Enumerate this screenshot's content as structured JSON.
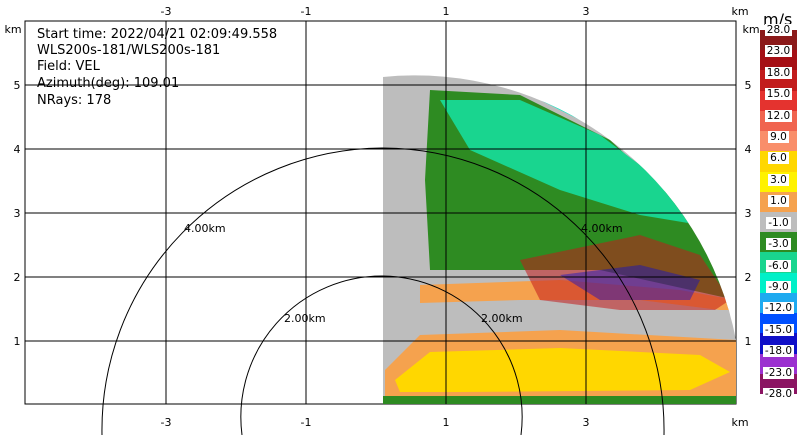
{
  "info": {
    "start_time": "Start time: 2022/04/21 02:09:49.558",
    "instrument": "WLS200s-181/WLS200s-181",
    "field": "Field: VEL",
    "azimuth": "Azimuth(deg): 109.01",
    "nrays": "NRays: 178"
  },
  "axes": {
    "unit": "km",
    "x_ticks": [
      "-3",
      "-1",
      "1",
      "3"
    ],
    "y_ticks": [
      "1",
      "2",
      "3",
      "4",
      "5"
    ]
  },
  "range_rings": [
    "2.00km",
    "4.00km",
    "2.00km",
    "4.00km"
  ],
  "colorbar": {
    "unit": "m/s",
    "labels": [
      "28.0",
      "23.0",
      "18.0",
      "15.0",
      "12.0",
      "9.0",
      "6.0",
      "3.0",
      "1.0",
      "-1.0",
      "-3.0",
      "-6.0",
      "-9.0",
      "-12.0",
      "-15.0",
      "-18.0",
      "-23.0",
      "-28.0"
    ],
    "colors": [
      "#8b1a1a",
      "#a50f15",
      "#c21c1c",
      "#e4332f",
      "#f0644f",
      "#f98e6a",
      "#ffd700",
      "#fff200",
      "#f5a24e",
      "#bdbdbd",
      "#2e8b22",
      "#19d58f",
      "#00f0c8",
      "#1eaaf0",
      "#0050ff",
      "#1010c8",
      "#9b30d0",
      "#8b1462"
    ]
  }
}
